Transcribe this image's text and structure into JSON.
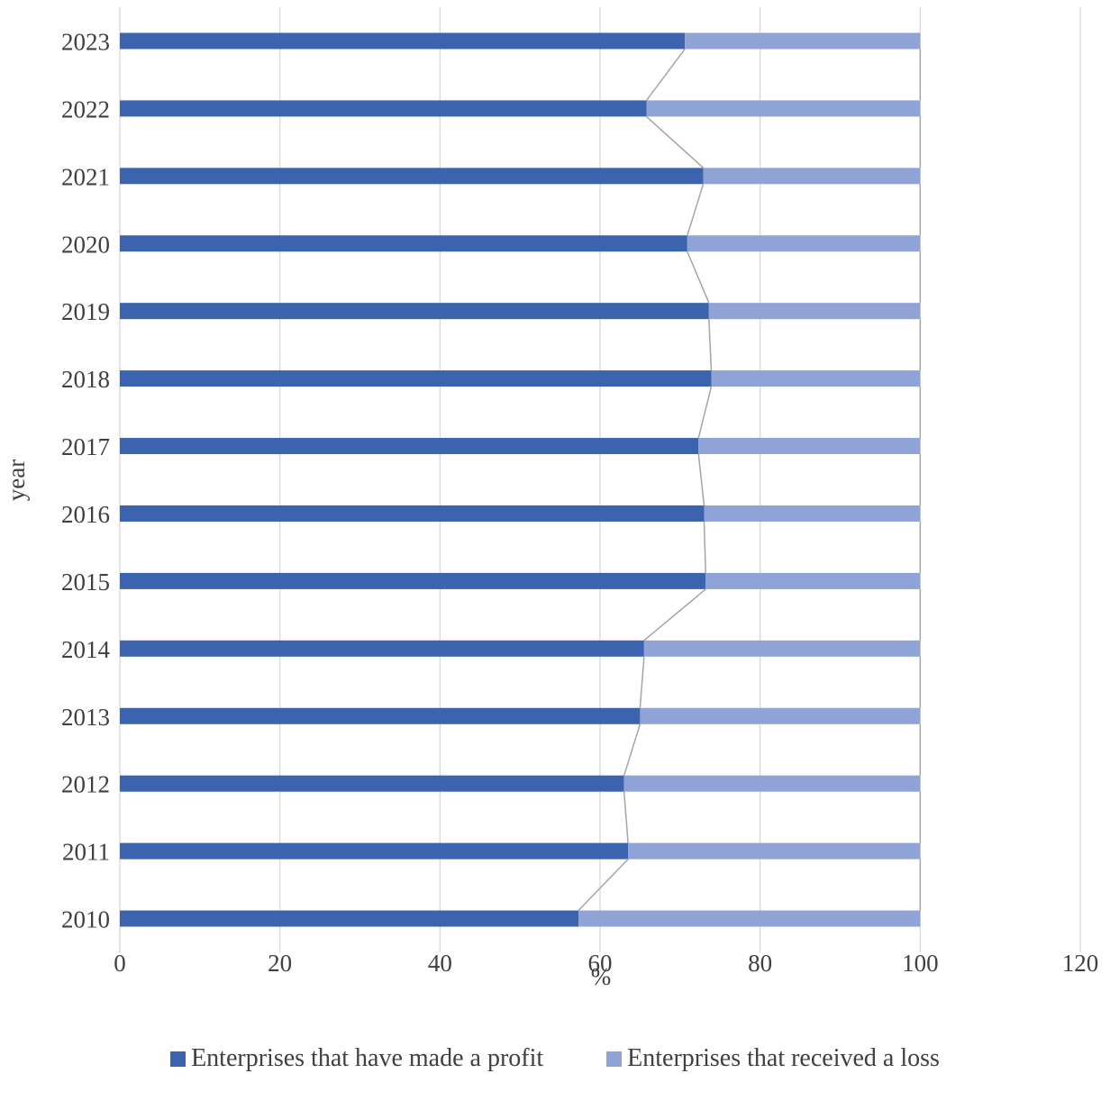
{
  "chart_data": {
    "type": "bar",
    "orientation": "horizontal",
    "stacked": true,
    "categories": [
      "2010",
      "2011",
      "2012",
      "2013",
      "2014",
      "2015",
      "2016",
      "2017",
      "2018",
      "2019",
      "2020",
      "2021",
      "2022",
      "2023"
    ],
    "series": [
      {
        "name": "Enterprises that have made a profit",
        "color": "#3c64ae",
        "values": [
          57.3,
          63.5,
          63.0,
          65.0,
          65.5,
          73.2,
          73.0,
          72.3,
          73.9,
          73.6,
          70.9,
          72.9,
          65.8,
          70.6
        ]
      },
      {
        "name": "Enterprises that received a loss",
        "color": "#90a3d6",
        "values": [
          42.7,
          36.5,
          37.0,
          35.0,
          34.5,
          26.8,
          27.0,
          27.7,
          26.1,
          26.4,
          29.1,
          27.1,
          34.2,
          29.4
        ]
      }
    ],
    "xlabel": "%",
    "ylabel": "year",
    "xlim": [
      0,
      120
    ],
    "xticks": [
      "0",
      "20",
      "40",
      "60",
      "80",
      "100",
      "120"
    ],
    "grid": true,
    "series_lines": true,
    "legend": "bottom"
  }
}
